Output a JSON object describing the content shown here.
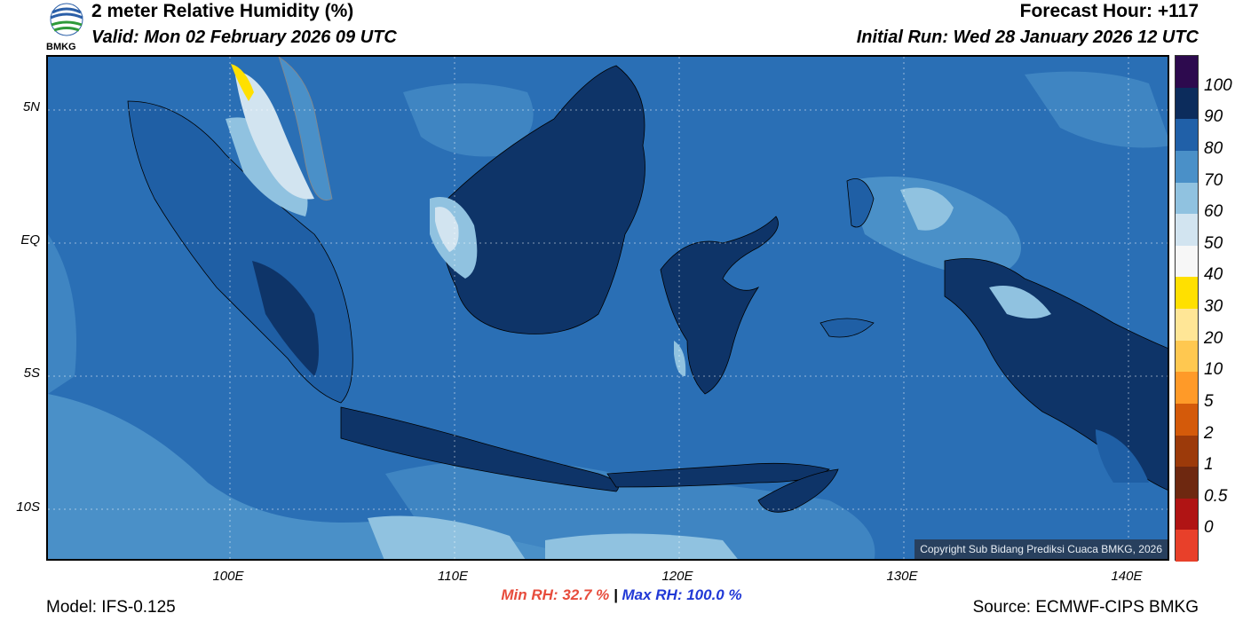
{
  "header": {
    "title": "2 meter Relative Humidity (%)",
    "valid": "Valid: Mon 02 February 2026 09 UTC",
    "forecast_hour": "Forecast Hour: +117",
    "initial_run": "Initial Run: Wed 28 January 2026 12 UTC"
  },
  "logo": {
    "text": "BMKG"
  },
  "axes": {
    "y_labels": [
      "5N",
      "EQ",
      "5S",
      "10S"
    ],
    "x_labels": [
      "100E",
      "110E",
      "120E",
      "130E",
      "140E"
    ]
  },
  "copyright": "Copyright Sub Bidang Prediksi Cuaca BMKG, 2026",
  "stats": {
    "min_label": "Min RH:  32.7 %",
    "separator": "|",
    "max_label": "Max RH: 100.0 %"
  },
  "footer": {
    "model": "Model: IFS-0.125",
    "source": "Source: ECMWF-CIPS BMKG"
  },
  "colorbar": {
    "labels": [
      "100",
      "90",
      "80",
      "70",
      "60",
      "50",
      "40",
      "30",
      "20",
      "10",
      "5",
      "2",
      "1",
      "0.5",
      "0"
    ],
    "colors": [
      "#2d0a4e",
      "#0c2c5c",
      "#2060a8",
      "#4a90c8",
      "#90c2e0",
      "#d2e4f0",
      "#f7f7f7",
      "#ffe000",
      "#ffe696",
      "#ffc850",
      "#ff9a28",
      "#d45a0a",
      "#9c3a0a",
      "#6e2810",
      "#b01414",
      "#e8402a"
    ]
  },
  "map_colors": {
    "ocean": "#2a6fb5",
    "ocean_light": "#4a90c8",
    "land_dark": "#0e3468",
    "land_mid": "#1f5fa5",
    "land_dry": "#90c2e0",
    "very_dry": "#d2e4f0",
    "yellow": "#ffe000"
  }
}
